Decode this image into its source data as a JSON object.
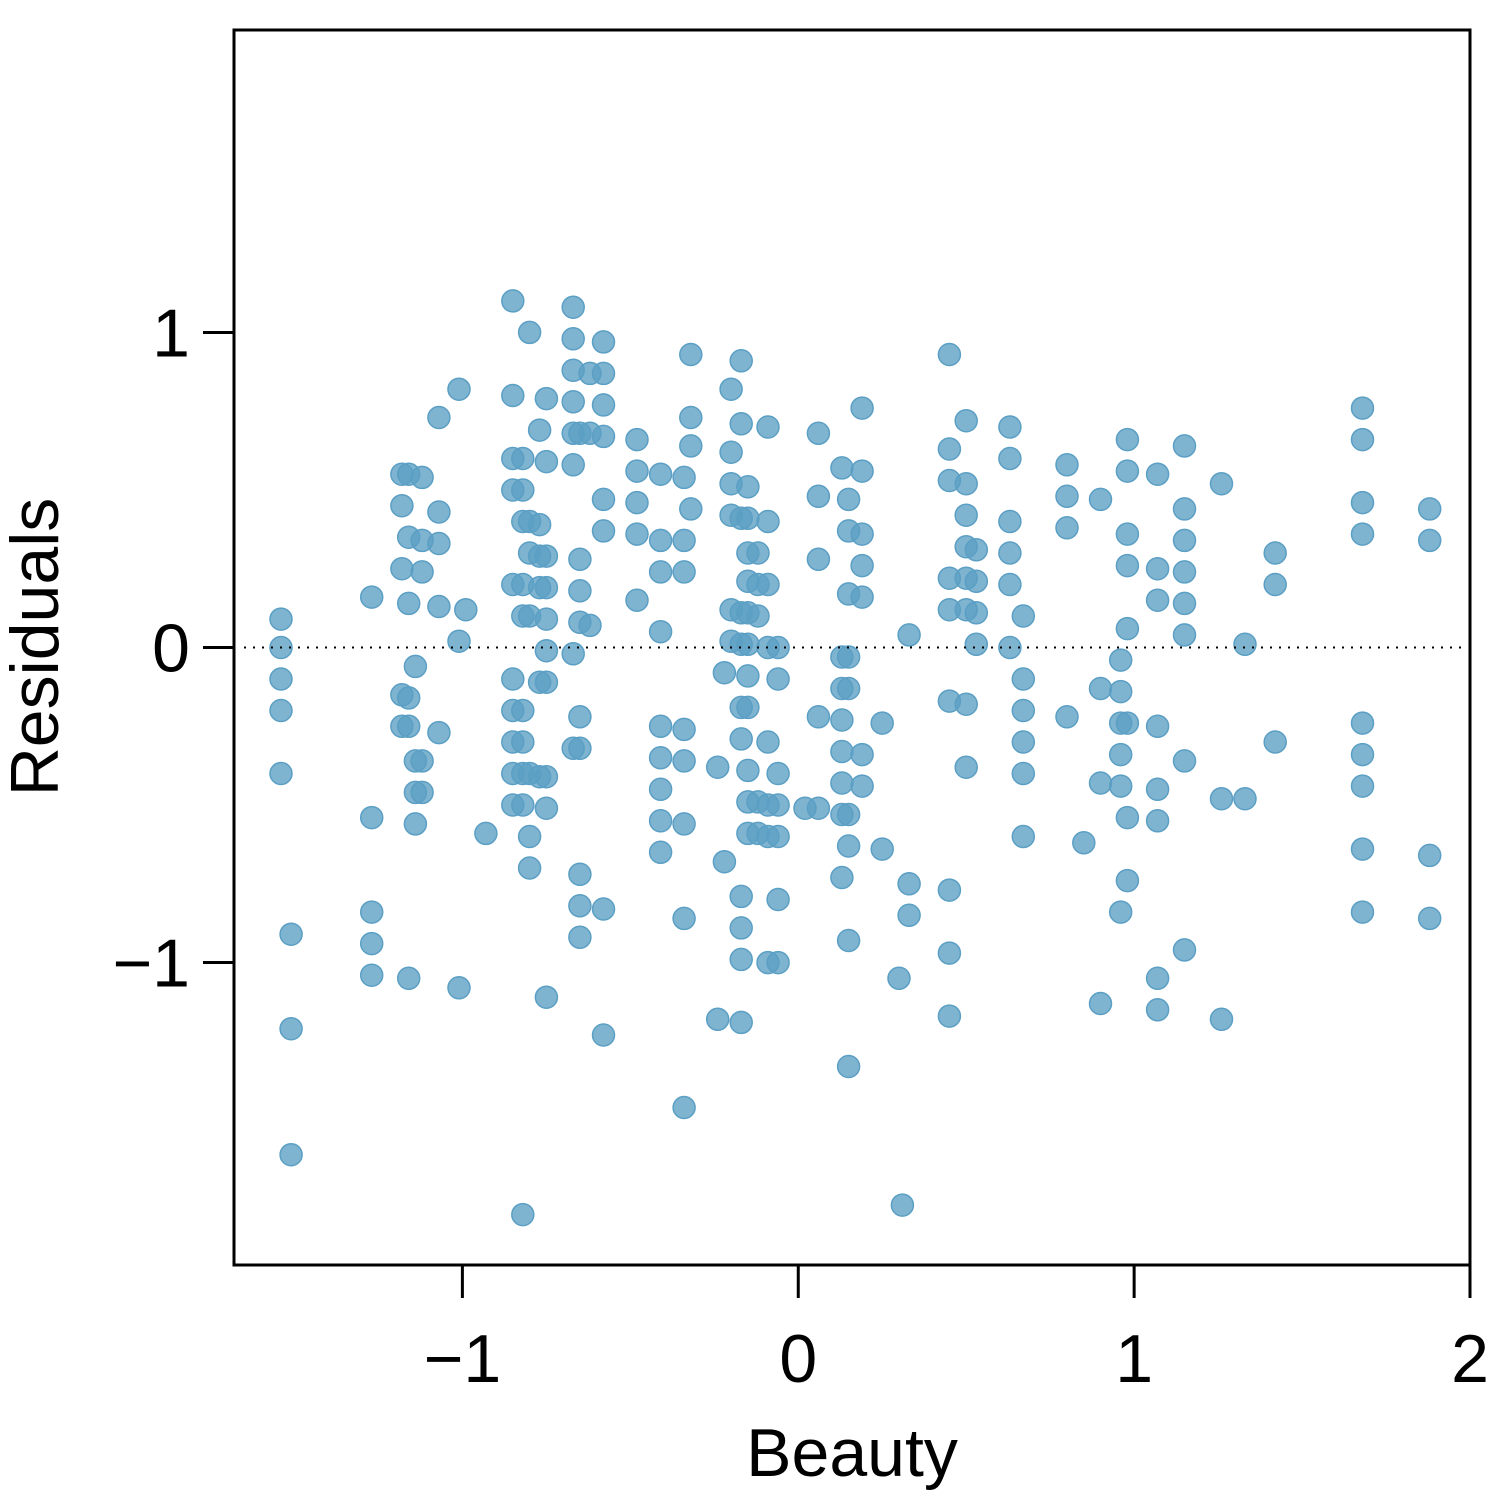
{
  "chart_data": {
    "type": "scatter",
    "title": "",
    "xlabel": "Beauty",
    "ylabel": "Residuals",
    "xlim": [
      -1.68,
      2.0
    ],
    "ylim": [
      -1.96,
      1.96
    ],
    "x_ticks": [
      -1,
      0,
      1,
      2
    ],
    "x_tick_labels": [
      "−1",
      "0",
      "1",
      "2"
    ],
    "y_ticks": [
      -1,
      0,
      1
    ],
    "y_tick_labels": [
      "−1",
      "0",
      "1"
    ],
    "reference_line": {
      "y": 0,
      "style": "dotted"
    },
    "grid": false,
    "point_color": "#5b9fc4",
    "points": [
      [
        -1.54,
        0.09
      ],
      [
        -1.54,
        0.0
      ],
      [
        -1.54,
        -0.1
      ],
      [
        -1.54,
        -0.2
      ],
      [
        -1.54,
        -0.4
      ],
      [
        -1.51,
        -0.91
      ],
      [
        -1.51,
        -1.21
      ],
      [
        -1.51,
        -1.61
      ],
      [
        -1.27,
        0.16
      ],
      [
        -1.27,
        -0.54
      ],
      [
        -1.27,
        -0.84
      ],
      [
        -1.27,
        -0.94
      ],
      [
        -1.27,
        -1.04
      ],
      [
        -1.18,
        0.55
      ],
      [
        -1.18,
        0.45
      ],
      [
        -1.18,
        0.25
      ],
      [
        -1.18,
        -0.15
      ],
      [
        -1.18,
        -0.25
      ],
      [
        -1.16,
        0.55
      ],
      [
        -1.16,
        0.35
      ],
      [
        -1.16,
        0.14
      ],
      [
        -1.16,
        -0.16
      ],
      [
        -1.16,
        -0.25
      ],
      [
        -1.16,
        -1.05
      ],
      [
        -1.14,
        -0.06
      ],
      [
        -1.14,
        -0.36
      ],
      [
        -1.14,
        -0.46
      ],
      [
        -1.14,
        -0.56
      ],
      [
        -1.12,
        0.54
      ],
      [
        -1.12,
        0.34
      ],
      [
        -1.12,
        0.24
      ],
      [
        -1.12,
        -0.36
      ],
      [
        -1.12,
        -0.46
      ],
      [
        -1.07,
        0.73
      ],
      [
        -1.07,
        0.43
      ],
      [
        -1.07,
        0.33
      ],
      [
        -1.07,
        0.13
      ],
      [
        -1.07,
        -0.27
      ],
      [
        -1.01,
        0.82
      ],
      [
        -1.01,
        0.02
      ],
      [
        -1.01,
        -1.08
      ],
      [
        -0.99,
        0.12
      ],
      [
        -0.93,
        -0.59
      ],
      [
        -0.85,
        1.1
      ],
      [
        -0.85,
        0.8
      ],
      [
        -0.85,
        0.6
      ],
      [
        -0.85,
        0.5
      ],
      [
        -0.85,
        0.2
      ],
      [
        -0.85,
        -0.1
      ],
      [
        -0.85,
        -0.2
      ],
      [
        -0.85,
        -0.3
      ],
      [
        -0.85,
        -0.4
      ],
      [
        -0.85,
        -0.5
      ],
      [
        -0.82,
        0.6
      ],
      [
        -0.82,
        0.5
      ],
      [
        -0.82,
        0.4
      ],
      [
        -0.82,
        0.2
      ],
      [
        -0.82,
        0.1
      ],
      [
        -0.82,
        -0.2
      ],
      [
        -0.82,
        -0.3
      ],
      [
        -0.82,
        -0.4
      ],
      [
        -0.82,
        -0.5
      ],
      [
        -0.82,
        -1.8
      ],
      [
        -0.8,
        1.0
      ],
      [
        -0.8,
        0.4
      ],
      [
        -0.8,
        0.3
      ],
      [
        -0.8,
        0.1
      ],
      [
        -0.8,
        -0.4
      ],
      [
        -0.8,
        -0.6
      ],
      [
        -0.8,
        -0.7
      ],
      [
        -0.77,
        0.69
      ],
      [
        -0.77,
        0.39
      ],
      [
        -0.77,
        0.29
      ],
      [
        -0.77,
        0.19
      ],
      [
        -0.77,
        -0.11
      ],
      [
        -0.77,
        -0.41
      ],
      [
        -0.75,
        0.79
      ],
      [
        -0.75,
        0.59
      ],
      [
        -0.75,
        0.29
      ],
      [
        -0.75,
        0.19
      ],
      [
        -0.75,
        0.09
      ],
      [
        -0.75,
        -0.01
      ],
      [
        -0.75,
        -0.11
      ],
      [
        -0.75,
        -0.41
      ],
      [
        -0.75,
        -0.51
      ],
      [
        -0.75,
        -1.11
      ],
      [
        -0.67,
        1.08
      ],
      [
        -0.67,
        0.98
      ],
      [
        -0.67,
        0.88
      ],
      [
        -0.67,
        0.78
      ],
      [
        -0.67,
        0.68
      ],
      [
        -0.67,
        0.58
      ],
      [
        -0.67,
        -0.02
      ],
      [
        -0.67,
        -0.32
      ],
      [
        -0.65,
        0.68
      ],
      [
        -0.65,
        0.28
      ],
      [
        -0.65,
        0.18
      ],
      [
        -0.65,
        0.08
      ],
      [
        -0.65,
        -0.22
      ],
      [
        -0.65,
        -0.32
      ],
      [
        -0.65,
        -0.72
      ],
      [
        -0.65,
        -0.82
      ],
      [
        -0.65,
        -0.92
      ],
      [
        -0.62,
        0.87
      ],
      [
        -0.62,
        0.68
      ],
      [
        -0.62,
        0.07
      ],
      [
        -0.58,
        0.97
      ],
      [
        -0.58,
        0.87
      ],
      [
        -0.58,
        0.77
      ],
      [
        -0.58,
        0.67
      ],
      [
        -0.58,
        0.47
      ],
      [
        -0.58,
        0.37
      ],
      [
        -0.58,
        -0.83
      ],
      [
        -0.58,
        -1.23
      ],
      [
        -0.48,
        0.66
      ],
      [
        -0.48,
        0.56
      ],
      [
        -0.48,
        0.46
      ],
      [
        -0.48,
        0.36
      ],
      [
        -0.48,
        0.15
      ],
      [
        -0.41,
        0.55
      ],
      [
        -0.41,
        0.34
      ],
      [
        -0.41,
        0.24
      ],
      [
        -0.41,
        0.05
      ],
      [
        -0.41,
        -0.25
      ],
      [
        -0.41,
        -0.35
      ],
      [
        -0.41,
        -0.45
      ],
      [
        -0.41,
        -0.55
      ],
      [
        -0.41,
        -0.65
      ],
      [
        -0.34,
        0.54
      ],
      [
        -0.34,
        0.34
      ],
      [
        -0.34,
        0.24
      ],
      [
        -0.34,
        -0.26
      ],
      [
        -0.34,
        -0.36
      ],
      [
        -0.34,
        -0.56
      ],
      [
        -0.34,
        -0.86
      ],
      [
        -0.34,
        -1.46
      ],
      [
        -0.32,
        0.93
      ],
      [
        -0.32,
        0.73
      ],
      [
        -0.32,
        0.64
      ],
      [
        -0.32,
        0.44
      ],
      [
        -0.24,
        -0.38
      ],
      [
        -0.24,
        -1.18
      ],
      [
        -0.22,
        -0.08
      ],
      [
        -0.22,
        -0.68
      ],
      [
        -0.2,
        0.82
      ],
      [
        -0.2,
        0.62
      ],
      [
        -0.2,
        0.52
      ],
      [
        -0.2,
        0.42
      ],
      [
        -0.2,
        0.12
      ],
      [
        -0.2,
        0.02
      ],
      [
        -0.17,
        0.91
      ],
      [
        -0.17,
        0.71
      ],
      [
        -0.17,
        0.41
      ],
      [
        -0.17,
        0.11
      ],
      [
        -0.17,
        0.01
      ],
      [
        -0.17,
        -0.19
      ],
      [
        -0.17,
        -0.29
      ],
      [
        -0.17,
        -0.79
      ],
      [
        -0.17,
        -0.89
      ],
      [
        -0.17,
        -0.99
      ],
      [
        -0.17,
        -1.19
      ],
      [
        -0.15,
        0.51
      ],
      [
        -0.15,
        0.41
      ],
      [
        -0.15,
        0.3
      ],
      [
        -0.15,
        0.21
      ],
      [
        -0.15,
        0.11
      ],
      [
        -0.15,
        0.01
      ],
      [
        -0.15,
        -0.09
      ],
      [
        -0.15,
        -0.19
      ],
      [
        -0.15,
        -0.39
      ],
      [
        -0.15,
        -0.49
      ],
      [
        -0.15,
        -0.59
      ],
      [
        -0.12,
        0.3
      ],
      [
        -0.12,
        0.2
      ],
      [
        -0.12,
        0.1
      ],
      [
        -0.12,
        -0.49
      ],
      [
        -0.12,
        -0.59
      ],
      [
        -0.09,
        0.7
      ],
      [
        -0.09,
        0.4
      ],
      [
        -0.09,
        0.2
      ],
      [
        -0.09,
        0.0
      ],
      [
        -0.09,
        -0.3
      ],
      [
        -0.09,
        -0.5
      ],
      [
        -0.09,
        -0.6
      ],
      [
        -0.09,
        -1.0
      ],
      [
        -0.06,
        0.0
      ],
      [
        -0.06,
        -0.1
      ],
      [
        -0.06,
        -0.4
      ],
      [
        -0.06,
        -0.5
      ],
      [
        -0.06,
        -0.6
      ],
      [
        -0.06,
        -0.8
      ],
      [
        -0.06,
        -1.0
      ],
      [
        0.02,
        -0.51
      ],
      [
        0.06,
        0.68
      ],
      [
        0.06,
        0.48
      ],
      [
        0.06,
        0.28
      ],
      [
        0.06,
        -0.22
      ],
      [
        0.06,
        -0.51
      ],
      [
        0.13,
        0.57
      ],
      [
        0.13,
        -0.03
      ],
      [
        0.13,
        -0.13
      ],
      [
        0.13,
        -0.23
      ],
      [
        0.13,
        -0.33
      ],
      [
        0.13,
        -0.43
      ],
      [
        0.13,
        -0.53
      ],
      [
        0.13,
        -0.73
      ],
      [
        0.15,
        0.47
      ],
      [
        0.15,
        0.37
      ],
      [
        0.15,
        0.17
      ],
      [
        0.15,
        -0.03
      ],
      [
        0.15,
        -0.13
      ],
      [
        0.15,
        -0.53
      ],
      [
        0.15,
        -0.63
      ],
      [
        0.15,
        -0.93
      ],
      [
        0.15,
        -1.33
      ],
      [
        0.19,
        0.76
      ],
      [
        0.19,
        0.56
      ],
      [
        0.19,
        0.36
      ],
      [
        0.19,
        0.26
      ],
      [
        0.19,
        0.16
      ],
      [
        0.19,
        -0.34
      ],
      [
        0.19,
        -0.44
      ],
      [
        0.25,
        -0.24
      ],
      [
        0.25,
        -0.64
      ],
      [
        0.3,
        -1.05
      ],
      [
        0.31,
        -1.77
      ],
      [
        0.33,
        0.04
      ],
      [
        0.33,
        -0.75
      ],
      [
        0.33,
        -0.85
      ],
      [
        0.45,
        0.93
      ],
      [
        0.45,
        0.63
      ],
      [
        0.45,
        0.53
      ],
      [
        0.45,
        0.22
      ],
      [
        0.45,
        0.12
      ],
      [
        0.45,
        -0.17
      ],
      [
        0.45,
        -0.77
      ],
      [
        0.45,
        -0.97
      ],
      [
        0.45,
        -1.17
      ],
      [
        0.5,
        0.72
      ],
      [
        0.5,
        0.52
      ],
      [
        0.5,
        0.42
      ],
      [
        0.5,
        0.32
      ],
      [
        0.5,
        0.22
      ],
      [
        0.5,
        0.12
      ],
      [
        0.5,
        -0.18
      ],
      [
        0.5,
        -0.38
      ],
      [
        0.53,
        0.31
      ],
      [
        0.53,
        0.21
      ],
      [
        0.53,
        0.11
      ],
      [
        0.53,
        0.01
      ],
      [
        0.63,
        0.7
      ],
      [
        0.63,
        0.6
      ],
      [
        0.63,
        0.4
      ],
      [
        0.63,
        0.3
      ],
      [
        0.63,
        0.2
      ],
      [
        0.63,
        0.0
      ],
      [
        0.67,
        0.1
      ],
      [
        0.67,
        -0.1
      ],
      [
        0.67,
        -0.2
      ],
      [
        0.67,
        -0.3
      ],
      [
        0.67,
        -0.4
      ],
      [
        0.67,
        -0.6
      ],
      [
        0.8,
        0.58
      ],
      [
        0.8,
        0.48
      ],
      [
        0.8,
        0.38
      ],
      [
        0.8,
        -0.22
      ],
      [
        0.85,
        -0.62
      ],
      [
        0.9,
        0.47
      ],
      [
        0.9,
        -0.13
      ],
      [
        0.9,
        -0.43
      ],
      [
        0.9,
        -1.13
      ],
      [
        0.96,
        -0.04
      ],
      [
        0.96,
        -0.14
      ],
      [
        0.96,
        -0.24
      ],
      [
        0.96,
        -0.34
      ],
      [
        0.96,
        -0.44
      ],
      [
        0.96,
        -0.84
      ],
      [
        0.98,
        0.66
      ],
      [
        0.98,
        0.56
      ],
      [
        0.98,
        0.36
      ],
      [
        0.98,
        0.26
      ],
      [
        0.98,
        0.06
      ],
      [
        0.98,
        -0.24
      ],
      [
        0.98,
        -0.54
      ],
      [
        0.98,
        -0.74
      ],
      [
        1.07,
        0.55
      ],
      [
        1.07,
        0.25
      ],
      [
        1.07,
        0.15
      ],
      [
        1.07,
        -0.25
      ],
      [
        1.07,
        -0.45
      ],
      [
        1.07,
        -0.55
      ],
      [
        1.07,
        -1.05
      ],
      [
        1.07,
        -1.15
      ],
      [
        1.15,
        0.64
      ],
      [
        1.15,
        0.44
      ],
      [
        1.15,
        0.34
      ],
      [
        1.15,
        0.24
      ],
      [
        1.15,
        0.14
      ],
      [
        1.15,
        0.04
      ],
      [
        1.15,
        -0.36
      ],
      [
        1.15,
        -0.96
      ],
      [
        1.26,
        0.52
      ],
      [
        1.26,
        -0.48
      ],
      [
        1.26,
        -1.18
      ],
      [
        1.33,
        0.01
      ],
      [
        1.33,
        -0.48
      ],
      [
        1.42,
        0.3
      ],
      [
        1.42,
        0.2
      ],
      [
        1.42,
        -0.3
      ],
      [
        1.68,
        0.76
      ],
      [
        1.68,
        0.66
      ],
      [
        1.68,
        0.46
      ],
      [
        1.68,
        0.36
      ],
      [
        1.68,
        -0.24
      ],
      [
        1.68,
        -0.34
      ],
      [
        1.68,
        -0.44
      ],
      [
        1.68,
        -0.64
      ],
      [
        1.68,
        -0.84
      ],
      [
        1.88,
        0.44
      ],
      [
        1.88,
        0.34
      ],
      [
        1.88,
        -0.66
      ],
      [
        1.88,
        -0.86
      ]
    ]
  }
}
